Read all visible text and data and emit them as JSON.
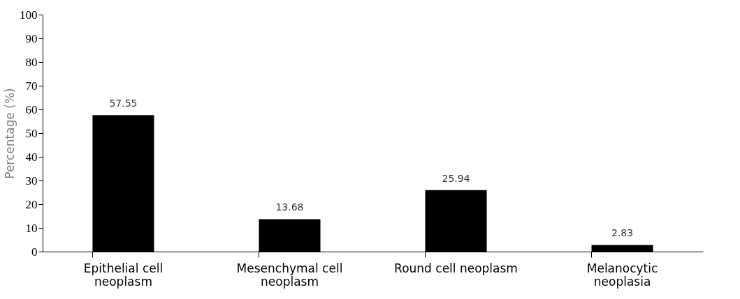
{
  "chart_data": {
    "type": "bar",
    "ylabel": "Percentage (%)",
    "categories": [
      "Epithelial cell\nneoplasm",
      "Mesenchymal cell\nneoplasm",
      "Round cell neoplasm",
      "Melanocytic\nneoplasia"
    ],
    "values": [
      57.55,
      13.68,
      25.94,
      2.83
    ],
    "color": "#000000",
    "ylim": [
      0,
      100
    ],
    "yticks": [
      0,
      10,
      20,
      30,
      40,
      50,
      60,
      70,
      80,
      90,
      100
    ],
    "grid": false,
    "data_labels": true
  }
}
